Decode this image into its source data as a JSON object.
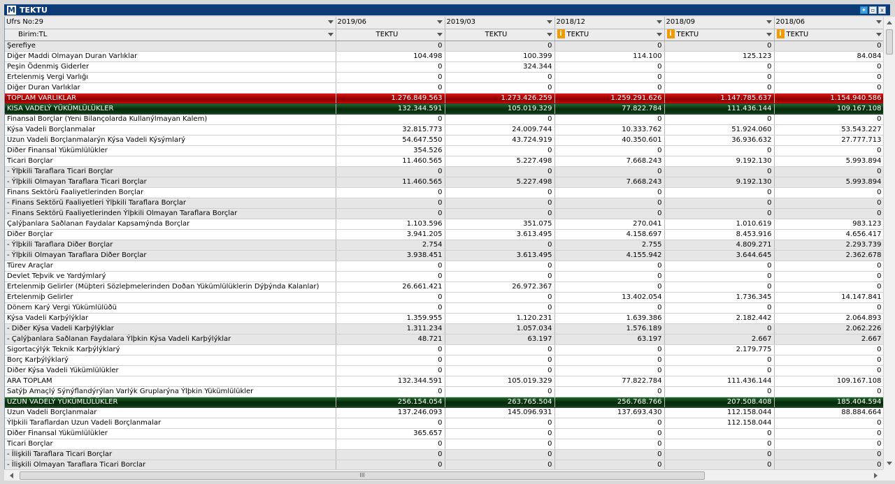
{
  "window": {
    "logo": "M",
    "title": "TEKTU",
    "buttons": [
      "twitter-icon",
      "restore-icon",
      "close-icon"
    ]
  },
  "header": {
    "row_label": "Ufrs No:29",
    "unit_label": "Birim:TL",
    "periods": [
      "2019/06",
      "2019/03",
      "2018/12",
      "2018/09",
      "2018/06"
    ],
    "currencies": [
      "TEKTU",
      "TEKTU",
      "TEKTU",
      "TEKTU",
      "TEKTU"
    ],
    "info_flags": [
      false,
      false,
      true,
      true,
      true
    ],
    "info_glyph": "i"
  },
  "colors": {
    "total_red": "#b80000",
    "section_green": "#062a0c",
    "info_orange": "#f29b00",
    "title_blue": "#0b3a74"
  },
  "rows": [
    {
      "label": "Şerefiye",
      "values": [
        "0",
        "0",
        "0",
        "0",
        "0"
      ],
      "style": "gray"
    },
    {
      "label": "Diğer Maddi Olmayan Duran Varlıklar",
      "values": [
        "104.498",
        "100.399",
        "114.100",
        "125.123",
        "84.084"
      ],
      "style": "white"
    },
    {
      "label": "Peşin Ödenmiş Giderler",
      "values": [
        "0",
        "324.344",
        "0",
        "0",
        "0"
      ],
      "style": "white"
    },
    {
      "label": "Ertelenmiş Vergi Varlığı",
      "values": [
        "0",
        "0",
        "0",
        "0",
        "0"
      ],
      "style": "white"
    },
    {
      "label": "Diğer Duran Varlıklar",
      "values": [
        "0",
        "0",
        "0",
        "0",
        "0"
      ],
      "style": "white"
    },
    {
      "label": "TOPLAM VARLIKLAR",
      "values": [
        "1.276.849.563",
        "1.273.426.259",
        "1.259.291.626",
        "1.147.785.637",
        "1.154.940.586"
      ],
      "style": "red"
    },
    {
      "label": "KISA VADELÝ YÜKÜMLÜLÜKLER",
      "values": [
        "132.344.591",
        "105.019.329",
        "77.822.784",
        "111.436.144",
        "109.167.108"
      ],
      "style": "green"
    },
    {
      "label": "Finansal Borçlar (Yeni Bilançolarda Kullanýlmayan Kalem)",
      "values": [
        "0",
        "0",
        "0",
        "0",
        "0"
      ],
      "style": "white"
    },
    {
      "label": "Kýsa Vadeli Borçlanmalar",
      "values": [
        "32.815.773",
        "24.009.744",
        "10.333.762",
        "51.924.060",
        "53.543.227"
      ],
      "style": "white"
    },
    {
      "label": "Uzun Vadeli Borçlanmalarýn Kýsa Vadeli Kýsýmlarý",
      "values": [
        "54.647.550",
        "43.724.919",
        "40.350.601",
        "36.936.632",
        "27.777.713"
      ],
      "style": "white"
    },
    {
      "label": "Diðer Finansal Yükümlülükler",
      "values": [
        "354.526",
        "0",
        "0",
        "0",
        "0"
      ],
      "style": "white"
    },
    {
      "label": "Ticari Borçlar",
      "values": [
        "11.460.565",
        "5.227.498",
        "7.668.243",
        "9.192.130",
        "5.993.894"
      ],
      "style": "white"
    },
    {
      "label": "- Ýlþkili Taraflara Ticari Borçlar",
      "values": [
        "0",
        "0",
        "0",
        "0",
        "0"
      ],
      "style": "gray"
    },
    {
      "label": "- Ýlþkili Olmayan Taraflara Ticari Borçlar",
      "values": [
        "11.460.565",
        "5.227.498",
        "7.668.243",
        "9.192.130",
        "5.993.894"
      ],
      "style": "gray"
    },
    {
      "label": "Finans Sektörü Faaliyetlerinden Borçlar",
      "values": [
        "0",
        "0",
        "0",
        "0",
        "0"
      ],
      "style": "white"
    },
    {
      "label": "- Finans Sektörü Faaliyetleri Ýlþkili Taraflara Borçlar",
      "values": [
        "0",
        "0",
        "0",
        "0",
        "0"
      ],
      "style": "gray"
    },
    {
      "label": "- Finans Sektörü Faaliyetlerinden Ýlþkili Olmayan Taraflara Borçlar",
      "values": [
        "0",
        "0",
        "0",
        "0",
        "0"
      ],
      "style": "gray"
    },
    {
      "label": "Çalýþanlara Saðlanan Faydalar Kapsamýnda Borçlar",
      "values": [
        "1.103.596",
        "351.075",
        "270.041",
        "1.010.619",
        "983.123"
      ],
      "style": "white"
    },
    {
      "label": "Diðer Borçlar",
      "values": [
        "3.941.205",
        "3.613.495",
        "4.158.697",
        "8.453.916",
        "4.656.417"
      ],
      "style": "white"
    },
    {
      "label": "- Ýlþkili Taraflara Diðer Borçlar",
      "values": [
        "2.754",
        "0",
        "2.755",
        "4.809.271",
        "2.293.739"
      ],
      "style": "gray"
    },
    {
      "label": "- Ýlþkili Olmayan Taraflara Diðer Borçlar",
      "values": [
        "3.938.451",
        "3.613.495",
        "4.155.942",
        "3.644.645",
        "2.362.678"
      ],
      "style": "gray"
    },
    {
      "label": "Türev Araçlar",
      "values": [
        "0",
        "0",
        "0",
        "0",
        "0"
      ],
      "style": "white"
    },
    {
      "label": "Devlet Teþvik ve Yardýmlarý",
      "values": [
        "0",
        "0",
        "0",
        "0",
        "0"
      ],
      "style": "white"
    },
    {
      "label": "Ertelenmiþ Gelirler (Müþteri Sözleþmelerinden Doðan Yükümlülüklerin Dýþýnda Kalanlar)",
      "values": [
        "26.661.421",
        "26.972.367",
        "0",
        "0",
        "0"
      ],
      "style": "white"
    },
    {
      "label": "Ertelenmiþ Gelirler",
      "values": [
        "0",
        "0",
        "13.402.054",
        "1.736.345",
        "14.147.841"
      ],
      "style": "white"
    },
    {
      "label": "Dönem Karý Vergi Yükümlülüðü",
      "values": [
        "0",
        "0",
        "0",
        "0",
        "0"
      ],
      "style": "white"
    },
    {
      "label": "Kýsa Vadeli Karþýlýklar",
      "values": [
        "1.359.955",
        "1.120.231",
        "1.639.386",
        "2.182.442",
        "2.064.893"
      ],
      "style": "white"
    },
    {
      "label": "- Diðer Kýsa Vadeli Karþýlýklar",
      "values": [
        "1.311.234",
        "1.057.034",
        "1.576.189",
        "0",
        "2.062.226"
      ],
      "style": "gray"
    },
    {
      "label": "- Çalýþanlara Saðlanan Faydalara Ýlþkin Kýsa Vadeli Karþýlýklar",
      "values": [
        "48.721",
        "63.197",
        "63.197",
        "2.667",
        "2.667"
      ],
      "style": "gray"
    },
    {
      "label": "Sigortacýlýk Teknik Karþýlýklarý",
      "values": [
        "0",
        "0",
        "0",
        "2.179.775",
        "0"
      ],
      "style": "white"
    },
    {
      "label": "Borç Karþýlýklarý",
      "values": [
        "0",
        "0",
        "0",
        "0",
        "0"
      ],
      "style": "white"
    },
    {
      "label": "Diðer Kýsa Vadeli Yükümlülükler",
      "values": [
        "0",
        "0",
        "0",
        "0",
        "0"
      ],
      "style": "white"
    },
    {
      "label": "ARA TOPLAM",
      "values": [
        "132.344.591",
        "105.019.329",
        "77.822.784",
        "111.436.144",
        "109.167.108"
      ],
      "style": "white"
    },
    {
      "label": "Satýþ Amaçlý Sýnýflandýrýlan Varlýk Gruplarýna Ýlþkin Yükümlülükler",
      "values": [
        "0",
        "0",
        "0",
        "0",
        "0"
      ],
      "style": "white"
    },
    {
      "label": "UZUN VADELÝ YÜKÜMLÜLÜKLER",
      "values": [
        "256.154.054",
        "263.765.504",
        "256.768.766",
        "207.508.408",
        "185.404.594"
      ],
      "style": "green"
    },
    {
      "label": "Uzun Vadeli Borçlanmalar",
      "values": [
        "137.246.093",
        "145.096.931",
        "137.693.430",
        "112.158.044",
        "88.884.664"
      ],
      "style": "white"
    },
    {
      "label": "Ýlþkili Taraflardan Uzun Vadeli Borçlanmalar",
      "values": [
        "0",
        "0",
        "0",
        "112.158.044",
        "0"
      ],
      "style": "white"
    },
    {
      "label": "Diðer Finansal Yükümlülükler",
      "values": [
        "365.657",
        "0",
        "0",
        "0",
        "0"
      ],
      "style": "white"
    },
    {
      "label": "Ticari Borçlar",
      "values": [
        "0",
        "0",
        "0",
        "0",
        "0"
      ],
      "style": "white"
    },
    {
      "label": "- İlişkili Taraflara Ticari Borçlar",
      "values": [
        "0",
        "0",
        "0",
        "0",
        "0"
      ],
      "style": "gray"
    },
    {
      "label": "- İlişkili Olmayan Taraflara Ticari Borclar",
      "values": [
        "0",
        "0",
        "0",
        "0",
        "0"
      ],
      "style": "gray"
    }
  ],
  "hscroll_grip": "III"
}
